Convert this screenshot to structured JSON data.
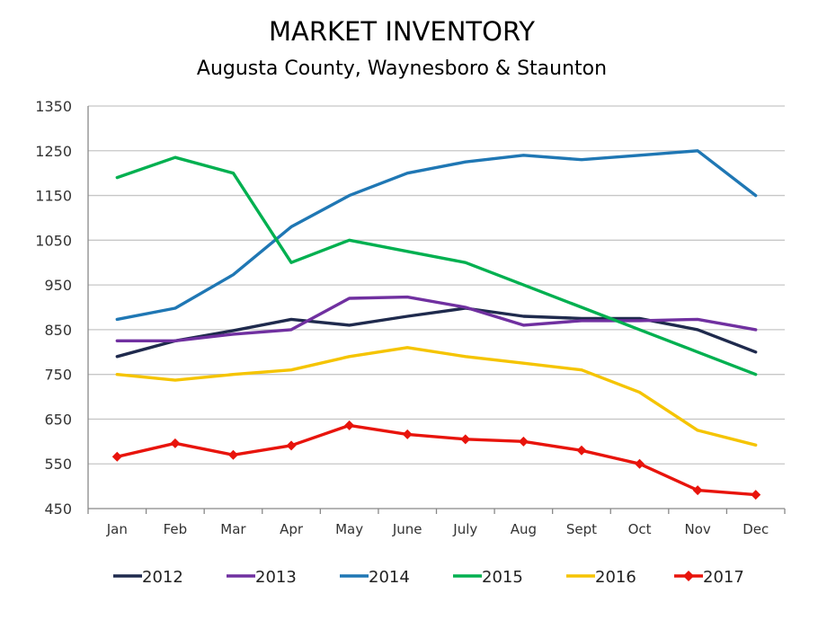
{
  "chart_data": {
    "type": "line",
    "title": "MARKET INVENTORY",
    "subtitle": "Augusta County, Waynesboro & Staunton",
    "xlabel": "",
    "ylabel": "",
    "categories": [
      "Jan",
      "Feb",
      "Mar",
      "Apr",
      "May",
      "June",
      "July",
      "Aug",
      "Sept",
      "Oct",
      "Nov",
      "Dec"
    ],
    "ylim": [
      450,
      1350
    ],
    "yticks": [
      450,
      550,
      650,
      750,
      850,
      950,
      1050,
      1150,
      1250,
      1350
    ],
    "grid": true,
    "legend_position": "bottom",
    "series": [
      {
        "name": "2012",
        "color": "#1f2a4d",
        "marker": "none",
        "values": [
          790,
          825,
          848,
          873,
          860,
          880,
          898,
          880,
          875,
          875,
          850,
          800
        ]
      },
      {
        "name": "2013",
        "color": "#7030a0",
        "marker": "none",
        "values": [
          825,
          825,
          840,
          850,
          920,
          923,
          900,
          860,
          870,
          870,
          873,
          850
        ]
      },
      {
        "name": "2014",
        "color": "#1f77b4",
        "marker": "none",
        "values": [
          873,
          898,
          973,
          1080,
          1150,
          1200,
          1225,
          1240,
          1230,
          1240,
          1250,
          1150
        ]
      },
      {
        "name": "2015",
        "color": "#00b050",
        "marker": "none",
        "values": [
          1190,
          1235,
          1200,
          1000,
          1050,
          1025,
          1000,
          950,
          900,
          850,
          800,
          750
        ]
      },
      {
        "name": "2016",
        "color": "#f5c400",
        "marker": "none",
        "values": [
          750,
          737,
          750,
          760,
          790,
          810,
          790,
          775,
          760,
          710,
          625,
          592
        ]
      },
      {
        "name": "2017",
        "color": "#e8140c",
        "marker": "diamond",
        "values": [
          566,
          596,
          570,
          591,
          636,
          616,
          605,
          600,
          580,
          550,
          491,
          481
        ]
      }
    ]
  }
}
